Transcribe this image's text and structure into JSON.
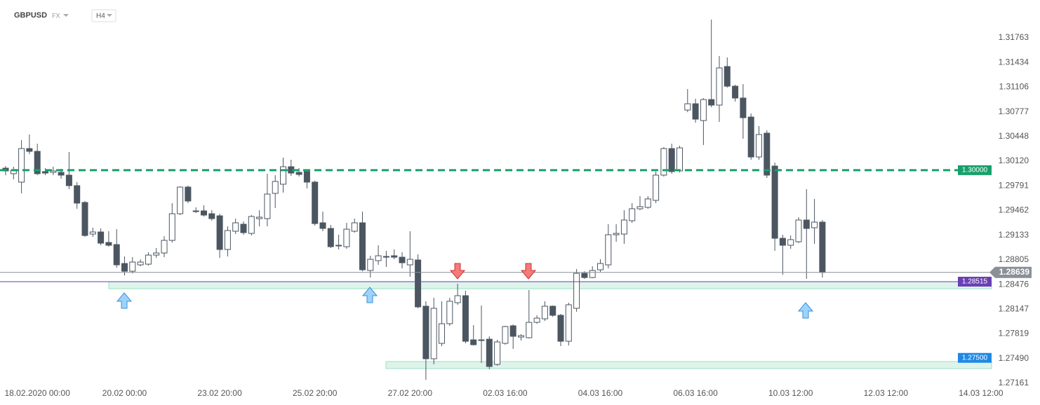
{
  "header": {
    "symbol": "GBPUSD",
    "market": "FX",
    "interval": "H4"
  },
  "chart_data": {
    "type": "candlestick",
    "categories": [
      null,
      null,
      null,
      null,
      "18.02.2020 00:00",
      null,
      null,
      null,
      null,
      null,
      null,
      null,
      null,
      null,
      null,
      "20.02 00:00",
      null,
      null,
      null,
      null,
      null,
      null,
      null,
      null,
      null,
      null,
      null,
      "23.02 20:00",
      null,
      null,
      null,
      null,
      null,
      null,
      null,
      null,
      null,
      null,
      null,
      "25.02 20:00",
      null,
      null,
      null,
      null,
      null,
      null,
      null,
      null,
      null,
      null,
      null,
      "27.02 20:00",
      null,
      null,
      null,
      null,
      null,
      null,
      null,
      null,
      null,
      null,
      null,
      "02.03 16:00",
      null,
      null,
      null,
      null,
      null,
      null,
      null,
      null,
      null,
      null,
      null,
      "04.03 16:00",
      null,
      null,
      null,
      null,
      null,
      null,
      null,
      null,
      null,
      null,
      null,
      "06.03 16:00",
      null,
      null,
      null,
      null,
      null,
      null,
      null,
      null,
      null,
      null,
      null,
      "10.03 12:00",
      null,
      null,
      null,
      null,
      null,
      null,
      null,
      null,
      null,
      null,
      null,
      "12.03 12:00",
      null,
      null,
      null,
      null,
      null,
      null,
      null,
      null,
      null,
      null,
      null,
      "14.03 12:00"
    ],
    "open": [
      1.30027,
      1.29953,
      1.29841,
      1.30288,
      1.30251,
      1.29981,
      1.29971,
      1.29971,
      1.29934,
      1.29794,
      1.2957,
      1.29149,
      1.29177,
      1.29037,
      1.29009,
      1.28757,
      1.28654,
      1.28739,
      1.28748,
      1.28869,
      1.28897,
      1.29065,
      1.2942,
      1.29775,
      1.29458,
      1.29458,
      1.2942,
      1.29392,
      1.28944,
      1.29187,
      1.2928,
      1.29158,
      1.29355,
      1.29355,
      1.29691,
      1.29813,
      1.30046,
      1.29971,
      1.29981,
      1.29841,
      1.29299,
      1.29224,
      1.29,
      1.28981,
      1.29187,
      1.29299,
      1.28664,
      1.28795,
      1.28851,
      1.2886,
      1.28841,
      1.28739,
      1.28804,
      1.28188,
      1.27488,
      1.27693,
      1.27955,
      1.28235,
      1.28328,
      1.2774,
      1.2774,
      1.27749,
      1.27413,
      1.27693,
      1.27927,
      1.27777,
      1.27768,
      1.27973,
      1.2802,
      1.28188,
      1.28067,
      1.27721,
      1.2816,
      1.28626,
      1.2857,
      1.28673,
      1.28739,
      1.2914,
      1.29149,
      1.29327,
      1.29486,
      1.29505,
      1.29598,
      1.29934,
      1.30288,
      1.2999,
      1.30801,
      1.30885,
      1.30661,
      1.30941,
      1.30867,
      1.31381,
      1.31119,
      1.30961,
      1.30708,
      1.30176,
      1.30493,
      1.30055,
      1.29093,
      1.29,
      1.29047,
      1.29336,
      1.29233,
      1.29308,
      null,
      null,
      null,
      null,
      null,
      null,
      null,
      null,
      null,
      null,
      null,
      null,
      null,
      null,
      null,
      null,
      null,
      null,
      null,
      null
    ],
    "high": [
      1.30055,
      1.30046,
      1.304,
      1.30475,
      1.30353,
      1.30027,
      1.30046,
      1.30018,
      1.30241,
      1.29841,
      1.29589,
      1.29233,
      1.29224,
      1.29187,
      1.29214,
      1.28851,
      1.28841,
      1.28813,
      1.28907,
      1.28963,
      1.29121,
      1.29561,
      1.29785,
      1.29794,
      1.29505,
      1.29533,
      1.29467,
      1.2942,
      1.29252,
      1.29355,
      1.29318,
      1.29402,
      1.29467,
      1.29953,
      1.29934,
      1.30167,
      1.30139,
      1.30027,
      1.29981,
      1.2986,
      1.29448,
      1.29271,
      1.2914,
      1.29299,
      1.29355,
      1.29448,
      1.2886,
      1.29,
      1.28925,
      1.28944,
      1.28907,
      1.29187,
      1.28879,
      1.28254,
      1.283,
      1.28254,
      1.283,
      1.28487,
      1.28394,
      1.27936,
      1.28197,
      1.27787,
      1.2774,
      1.27927,
      1.27945,
      1.27815,
      1.28403,
      1.28067,
      1.28254,
      1.28197,
      1.28085,
      1.28235,
      1.28683,
      1.28654,
      1.2872,
      1.28813,
      1.2928,
      1.2928,
      1.29467,
      1.29561,
      1.29654,
      1.29654,
      1.29981,
      1.30307,
      1.30353,
      1.30325,
      1.31081,
      1.30951,
      1.3096,
      1.32006,
      1.3152,
      1.31502,
      1.31138,
      1.31147,
      1.30755,
      1.30587,
      1.30531,
      1.30102,
      1.2914,
      1.2913,
      1.29374,
      1.29747,
      1.29617,
      1.29336,
      null,
      null,
      null,
      null,
      null,
      null,
      null,
      null,
      null,
      null,
      null,
      null,
      null,
      null,
      null,
      null,
      null,
      null,
      null,
      null
    ],
    "low": [
      1.29934,
      1.29878,
      1.29691,
      1.30213,
      1.29934,
      1.29934,
      1.29934,
      1.29887,
      1.29747,
      1.29486,
      1.29112,
      1.29112,
      1.29,
      1.28981,
      1.28701,
      1.28598,
      1.28626,
      1.2872,
      1.28729,
      1.28832,
      1.28841,
      1.29037,
      1.29402,
      1.29561,
      1.2943,
      1.29383,
      1.29327,
      1.28832,
      1.28851,
      1.29149,
      1.2914,
      1.2913,
      1.29252,
      1.29252,
      1.29495,
      1.29701,
      1.29925,
      1.29915,
      1.29757,
      1.29261,
      1.29187,
      1.28963,
      1.28944,
      1.28953,
      1.29168,
      1.28654,
      1.2857,
      1.28739,
      1.28711,
      1.28813,
      1.28692,
      1.2858,
      1.2816,
      1.27207,
      1.27413,
      1.27656,
      1.27927,
      1.28207,
      1.27693,
      1.27665,
      1.27432,
      1.27348,
      1.27395,
      1.27675,
      1.27619,
      1.27731,
      1.27759,
      1.27955,
      1.27992,
      1.28048,
      1.27656,
      1.27665,
      1.28114,
      1.28552,
      1.28561,
      1.28645,
      1.28692,
      1.29047,
      1.29019,
      1.29299,
      1.29467,
      1.29486,
      1.29561,
      1.29915,
      1.29953,
      1.29971,
      1.30773,
      1.30633,
      1.30335,
      1.30839,
      1.30643,
      1.31101,
      1.30914,
      1.30419,
      1.30139,
      1.30139,
      1.29897,
      1.28925,
      1.28607,
      1.28953,
      1.29028,
      1.28552,
      1.29019,
      1.2857,
      null,
      null,
      null,
      null,
      null,
      null,
      null,
      null,
      null,
      null,
      null,
      null,
      null,
      null,
      null,
      null,
      null,
      null,
      null,
      null
    ],
    "close": [
      1.2999,
      1.29999,
      1.30288,
      1.30251,
      1.29953,
      1.29962,
      1.2999,
      1.29934,
      1.29794,
      1.29561,
      1.2913,
      1.29177,
      1.29028,
      1.29,
      1.28739,
      1.28654,
      1.28776,
      1.28776,
      1.28869,
      1.28897,
      1.29065,
      1.2942,
      1.29775,
      1.29589,
      1.29448,
      1.29402,
      1.29355,
      1.28944,
      1.29196,
      1.29299,
      1.29168,
      1.29383,
      1.29374,
      1.29682,
      1.2985,
      1.30046,
      1.29962,
      1.29943,
      1.29841,
      1.29289,
      1.29224,
      1.28981,
      1.28991,
      1.29214,
      1.29299,
      1.28673,
      1.28813,
      1.2886,
      1.28841,
      1.28841,
      1.28767,
      1.28813,
      1.28179,
      1.27488,
      1.2816,
      1.27955,
      1.28254,
      1.28328,
      1.27721,
      1.27675,
      1.27731,
      1.27385,
      1.27712,
      1.27917,
      1.27787,
      1.27796,
      1.27973,
      1.28029,
      1.28188,
      1.28067,
      1.27721,
      1.28207,
      1.28626,
      1.2857,
      1.28664,
      1.28757,
      1.2914,
      1.29158,
      1.29336,
      1.29486,
      1.29514,
      1.29617,
      1.29934,
      1.30288,
      1.29981,
      1.30297,
      1.30885,
      1.3068,
      1.30941,
      1.30867,
      1.31362,
      1.31119,
      1.30961,
      1.30699,
      1.30176,
      1.30475,
      1.29934,
      1.29093,
      1.29,
      1.29075,
      1.29336,
      1.29224,
      1.29308,
      1.28639,
      null,
      null,
      null,
      null,
      null,
      null,
      null,
      null,
      null,
      null,
      null,
      null,
      null,
      null,
      null,
      null,
      null,
      null,
      null,
      null
    ],
    "up_color": "#ffffff",
    "down_color": "#4b5661",
    "wick_color": "#4b5661",
    "ylim": [
      1.26872,
      1.32267
    ],
    "yticks": [
      1.31763,
      1.31434,
      1.31106,
      1.30777,
      1.30448,
      {
        "value": 1.3012,
        "label": "1.30120"
      },
      1.29791,
      1.29462,
      1.29133,
      1.28805,
      1.28476,
      1.28147,
      1.27819,
      {
        "value": 1.2749,
        "label": "1.27490"
      },
      1.27161
    ],
    "levels": [
      {
        "value": 1.3,
        "label": "1.30000",
        "color": "#17a06a",
        "line": "dashed"
      },
      {
        "value": 1.28639,
        "label": "1.28639",
        "color": "#8a9096",
        "line": "solid"
      },
      {
        "value": 1.28515,
        "label": "1.28515",
        "color": "#6a3fb5",
        "line": "solid"
      },
      {
        "value": 1.275,
        "label": "1.27500",
        "color": "#1e88e5",
        "line": "none"
      }
    ],
    "zones": [
      {
        "low": 1.28421,
        "high": 1.28515,
        "color": "#9fe0c4"
      },
      {
        "low": 1.27357,
        "high": 1.27451,
        "color": "#9fe0c4"
      }
    ]
  }
}
